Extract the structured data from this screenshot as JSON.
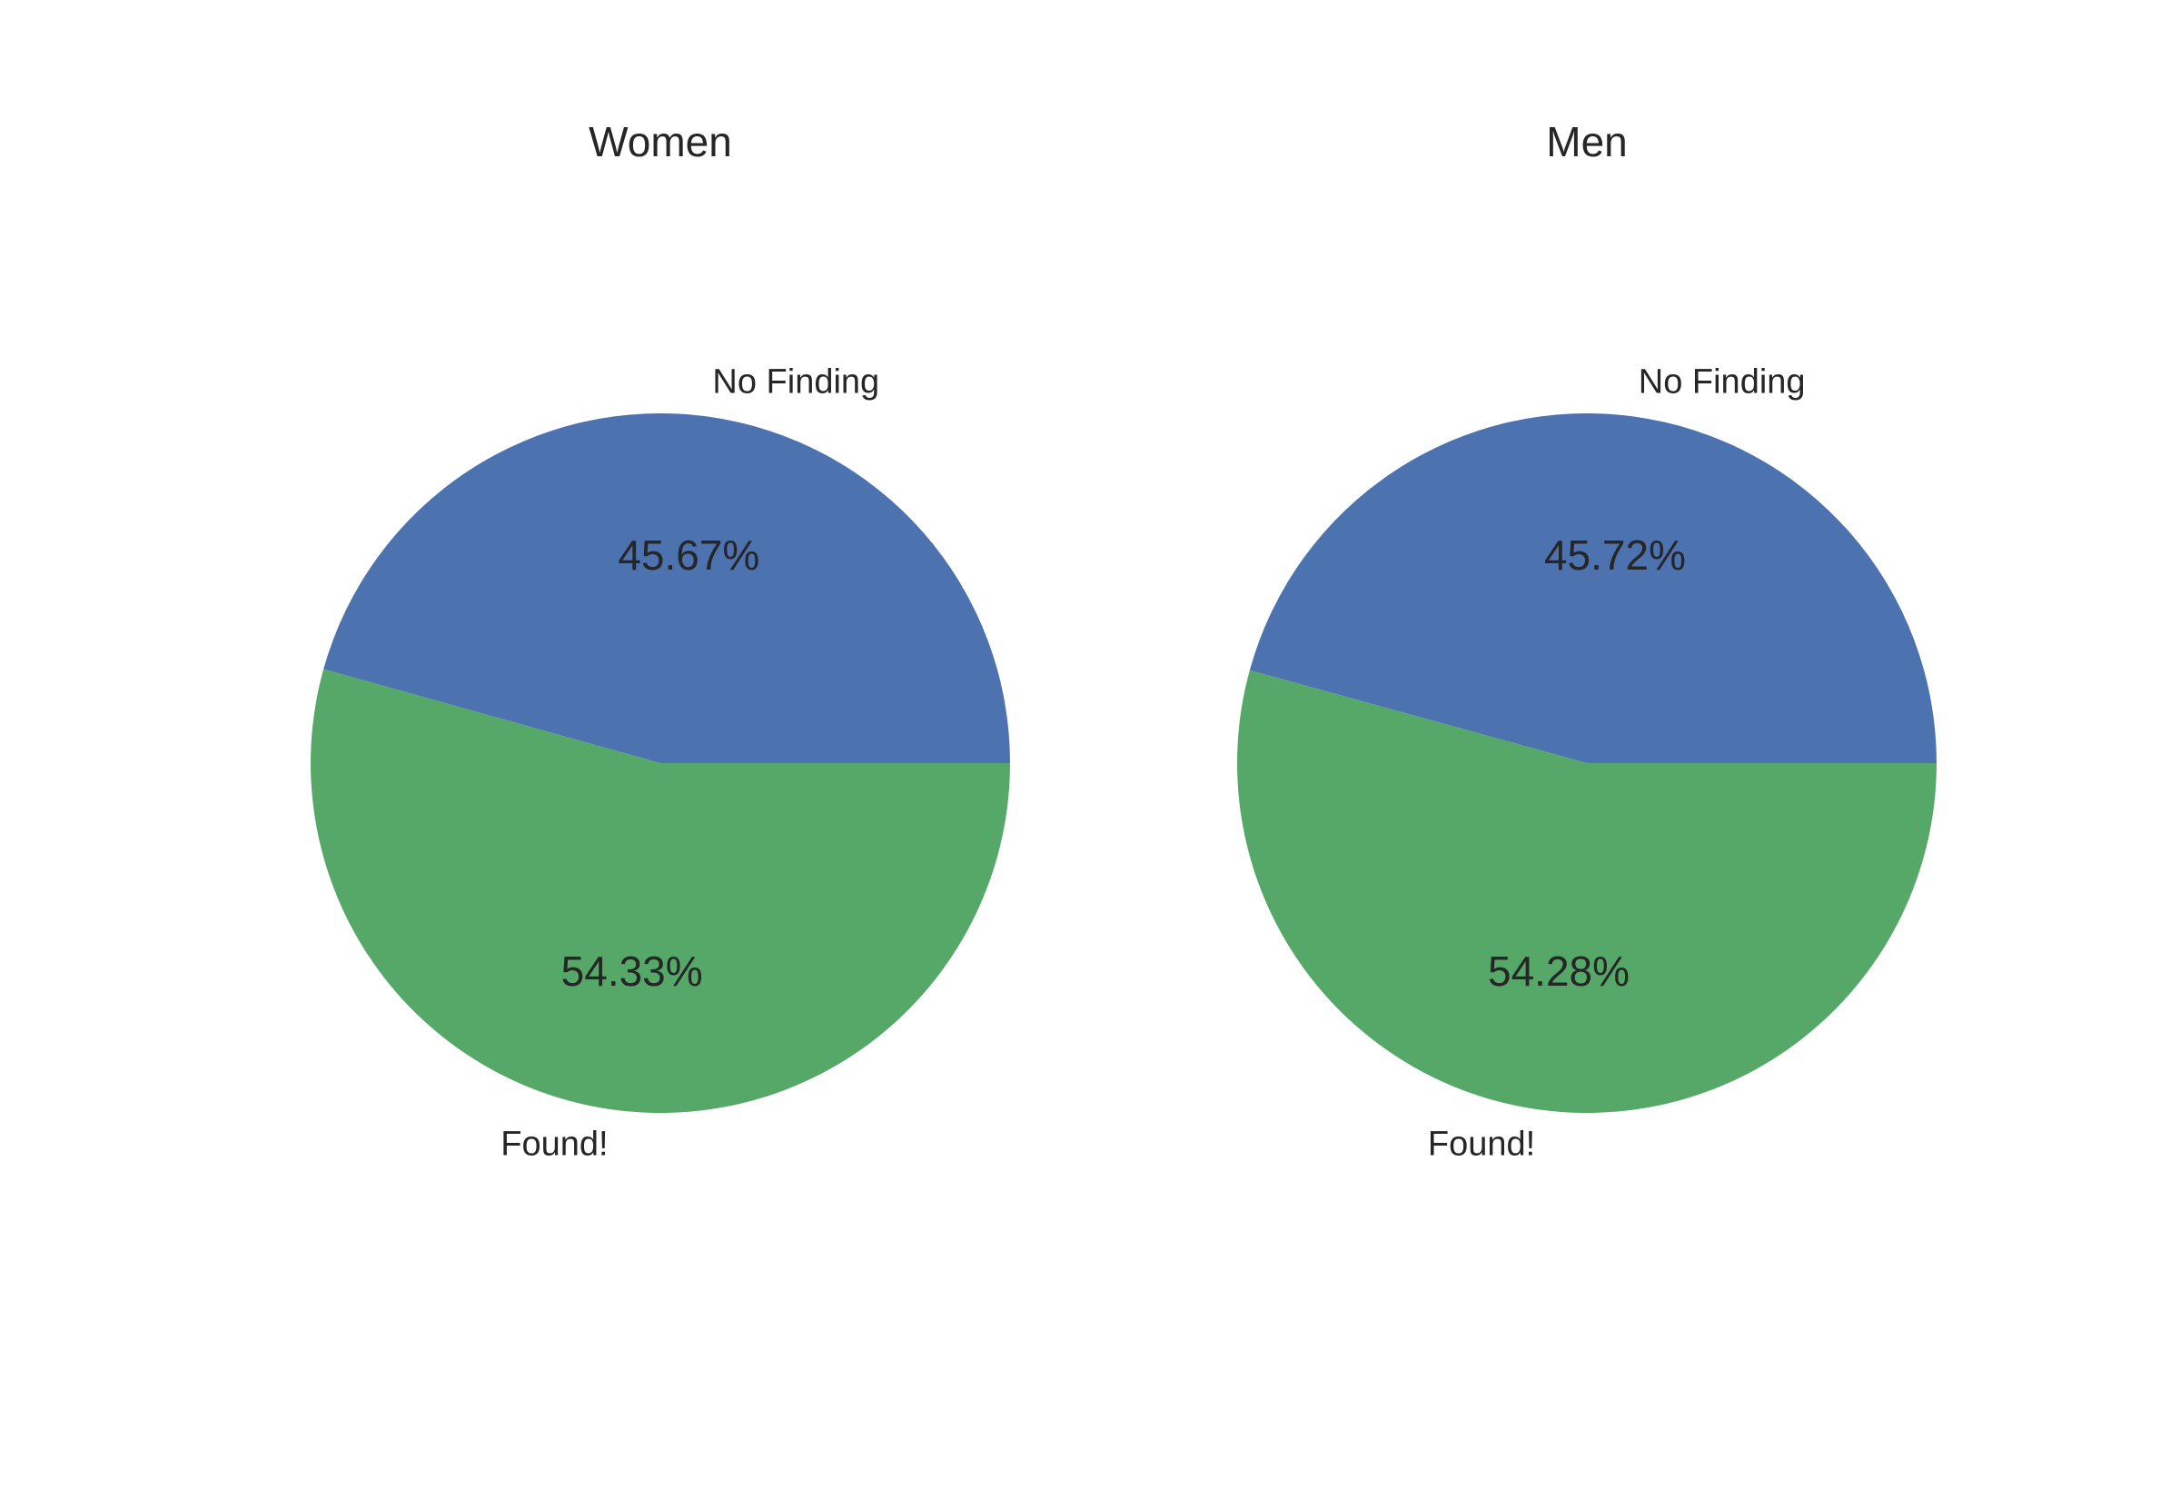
{
  "chart_data": [
    {
      "type": "pie",
      "title": "Women",
      "categories": [
        "No Finding",
        "Found!"
      ],
      "values": [
        45.67,
        54.33
      ],
      "value_labels": [
        "45.67%",
        "54.33%"
      ],
      "colors": [
        "#4c72b0",
        "#55a868"
      ],
      "start_angle_deg": 0,
      "direction": "counterclockwise"
    },
    {
      "type": "pie",
      "title": "Men",
      "categories": [
        "No Finding",
        "Found!"
      ],
      "values": [
        45.72,
        54.28
      ],
      "value_labels": [
        "45.72%",
        "54.28%"
      ],
      "colors": [
        "#4c72b0",
        "#55a868"
      ],
      "start_angle_deg": 0,
      "direction": "counterclockwise"
    }
  ]
}
